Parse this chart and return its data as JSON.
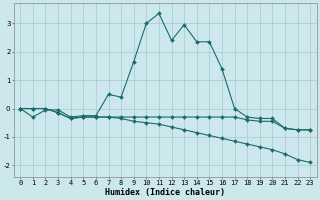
{
  "xlabel": "Humidex (Indice chaleur)",
  "ylabel": "",
  "background_color": "#cce8ec",
  "grid_color": "#aacdd4",
  "line_color": "#1a6b6b",
  "xlim": [
    -0.5,
    23.5
  ],
  "ylim": [
    -2.4,
    3.7
  ],
  "yticks": [
    -2,
    -1,
    0,
    1,
    2,
    3
  ],
  "xticks": [
    0,
    1,
    2,
    3,
    4,
    5,
    6,
    7,
    8,
    9,
    10,
    11,
    12,
    13,
    14,
    15,
    16,
    17,
    18,
    19,
    20,
    21,
    22,
    23
  ],
  "line1_x": [
    0,
    1,
    2,
    3,
    4,
    5,
    6,
    7,
    8,
    9,
    10,
    11,
    12,
    13,
    14,
    15,
    16,
    17,
    18,
    19,
    20,
    21,
    22,
    23
  ],
  "line1_y": [
    0.0,
    -0.3,
    -0.05,
    -0.05,
    -0.3,
    -0.25,
    -0.25,
    0.5,
    0.4,
    1.65,
    3.0,
    3.35,
    2.4,
    2.95,
    2.35,
    2.35,
    1.4,
    0.0,
    -0.3,
    -0.35,
    -0.35,
    -0.7,
    -0.75,
    -0.75
  ],
  "line2_x": [
    0,
    1,
    2,
    3,
    4,
    5,
    6,
    7,
    8,
    9,
    10,
    11,
    12,
    13,
    14,
    15,
    16,
    17,
    18,
    19,
    20,
    21,
    22,
    23
  ],
  "line2_y": [
    0.0,
    0.0,
    0.0,
    -0.15,
    -0.35,
    -0.3,
    -0.3,
    -0.3,
    -0.3,
    -0.3,
    -0.3,
    -0.3,
    -0.3,
    -0.3,
    -0.3,
    -0.3,
    -0.3,
    -0.3,
    -0.4,
    -0.45,
    -0.45,
    -0.7,
    -0.75,
    -0.75
  ],
  "line3_x": [
    0,
    1,
    2,
    3,
    4,
    5,
    6,
    7,
    8,
    9,
    10,
    11,
    12,
    13,
    14,
    15,
    16,
    17,
    18,
    19,
    20,
    21,
    22,
    23
  ],
  "line3_y": [
    0.0,
    0.0,
    0.0,
    -0.15,
    -0.35,
    -0.3,
    -0.3,
    -0.3,
    -0.35,
    -0.45,
    -0.5,
    -0.55,
    -0.65,
    -0.75,
    -0.85,
    -0.95,
    -1.05,
    -1.15,
    -1.25,
    -1.35,
    -1.45,
    -1.6,
    -1.8,
    -1.9
  ]
}
